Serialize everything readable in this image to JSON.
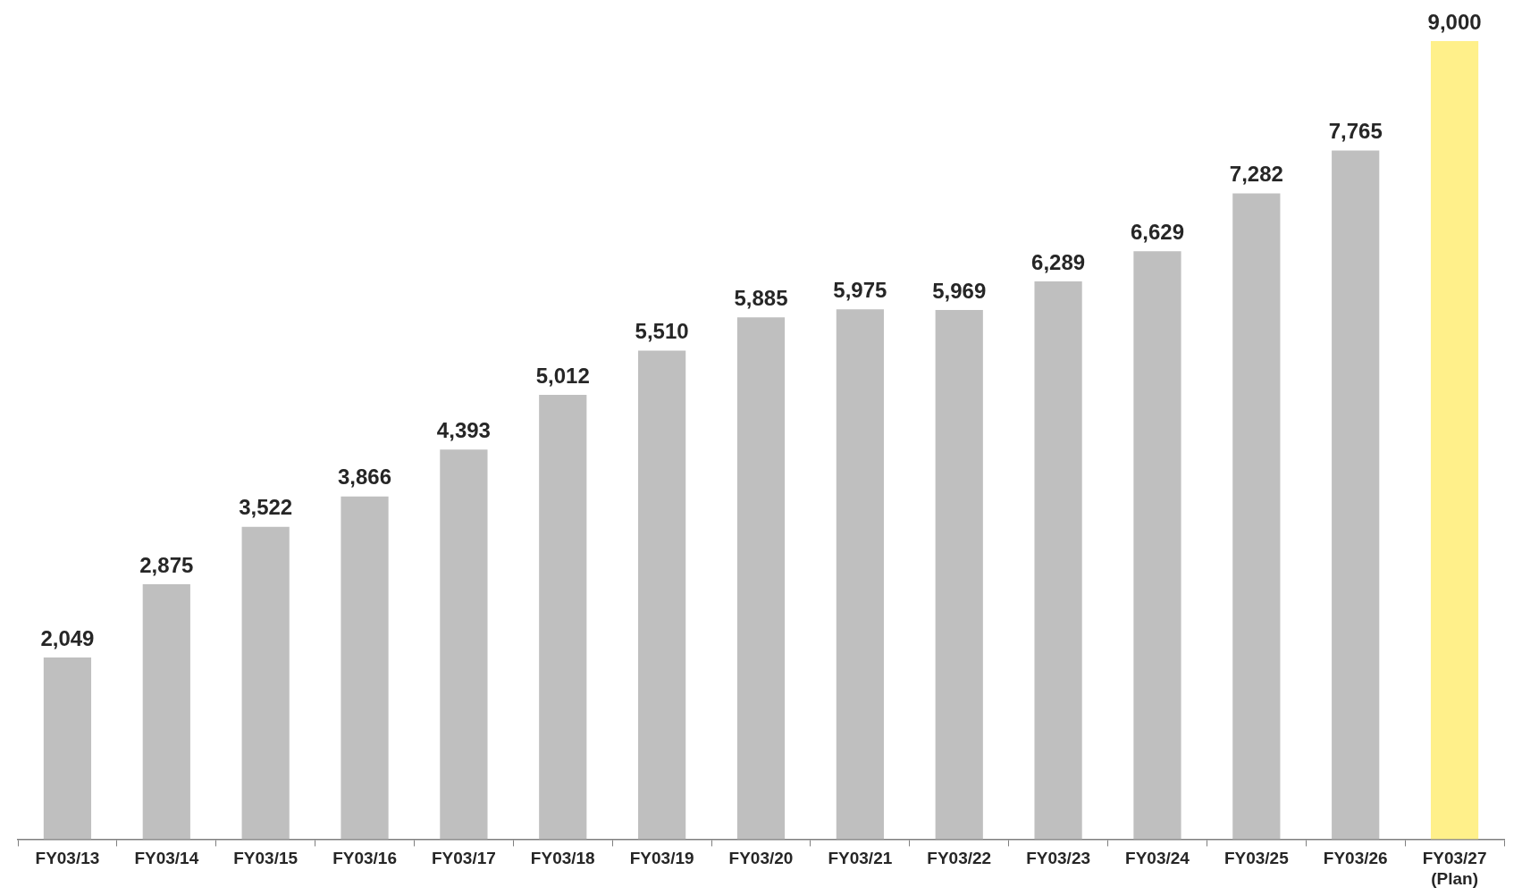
{
  "chart_data": {
    "type": "bar",
    "categories": [
      "FY03/13",
      "FY03/14",
      "FY03/15",
      "FY03/16",
      "FY03/17",
      "FY03/18",
      "FY03/19",
      "FY03/20",
      "FY03/21",
      "FY03/22",
      "FY03/23",
      "FY03/24",
      "FY03/25",
      "FY03/26",
      "FY03/27\n(Plan)"
    ],
    "values": [
      2049,
      2875,
      3522,
      3866,
      4393,
      5012,
      5510,
      5885,
      5975,
      5969,
      6289,
      6629,
      7282,
      7765,
      9000
    ],
    "colors": [
      "#bfbfbf",
      "#bfbfbf",
      "#bfbfbf",
      "#bfbfbf",
      "#bfbfbf",
      "#bfbfbf",
      "#bfbfbf",
      "#bfbfbf",
      "#bfbfbf",
      "#bfbfbf",
      "#bfbfbf",
      "#bfbfbf",
      "#bfbfbf",
      "#bfbfbf",
      "#fff08a"
    ],
    "value_labels": [
      "2,049",
      "2,875",
      "3,522",
      "3,866",
      "4,393",
      "5,012",
      "5,510",
      "5,885",
      "5,975",
      "5,969",
      "6,289",
      "6,629",
      "7,282",
      "7,765",
      "9,000"
    ],
    "grid": false,
    "legend": false,
    "tick_labels": "x"
  }
}
